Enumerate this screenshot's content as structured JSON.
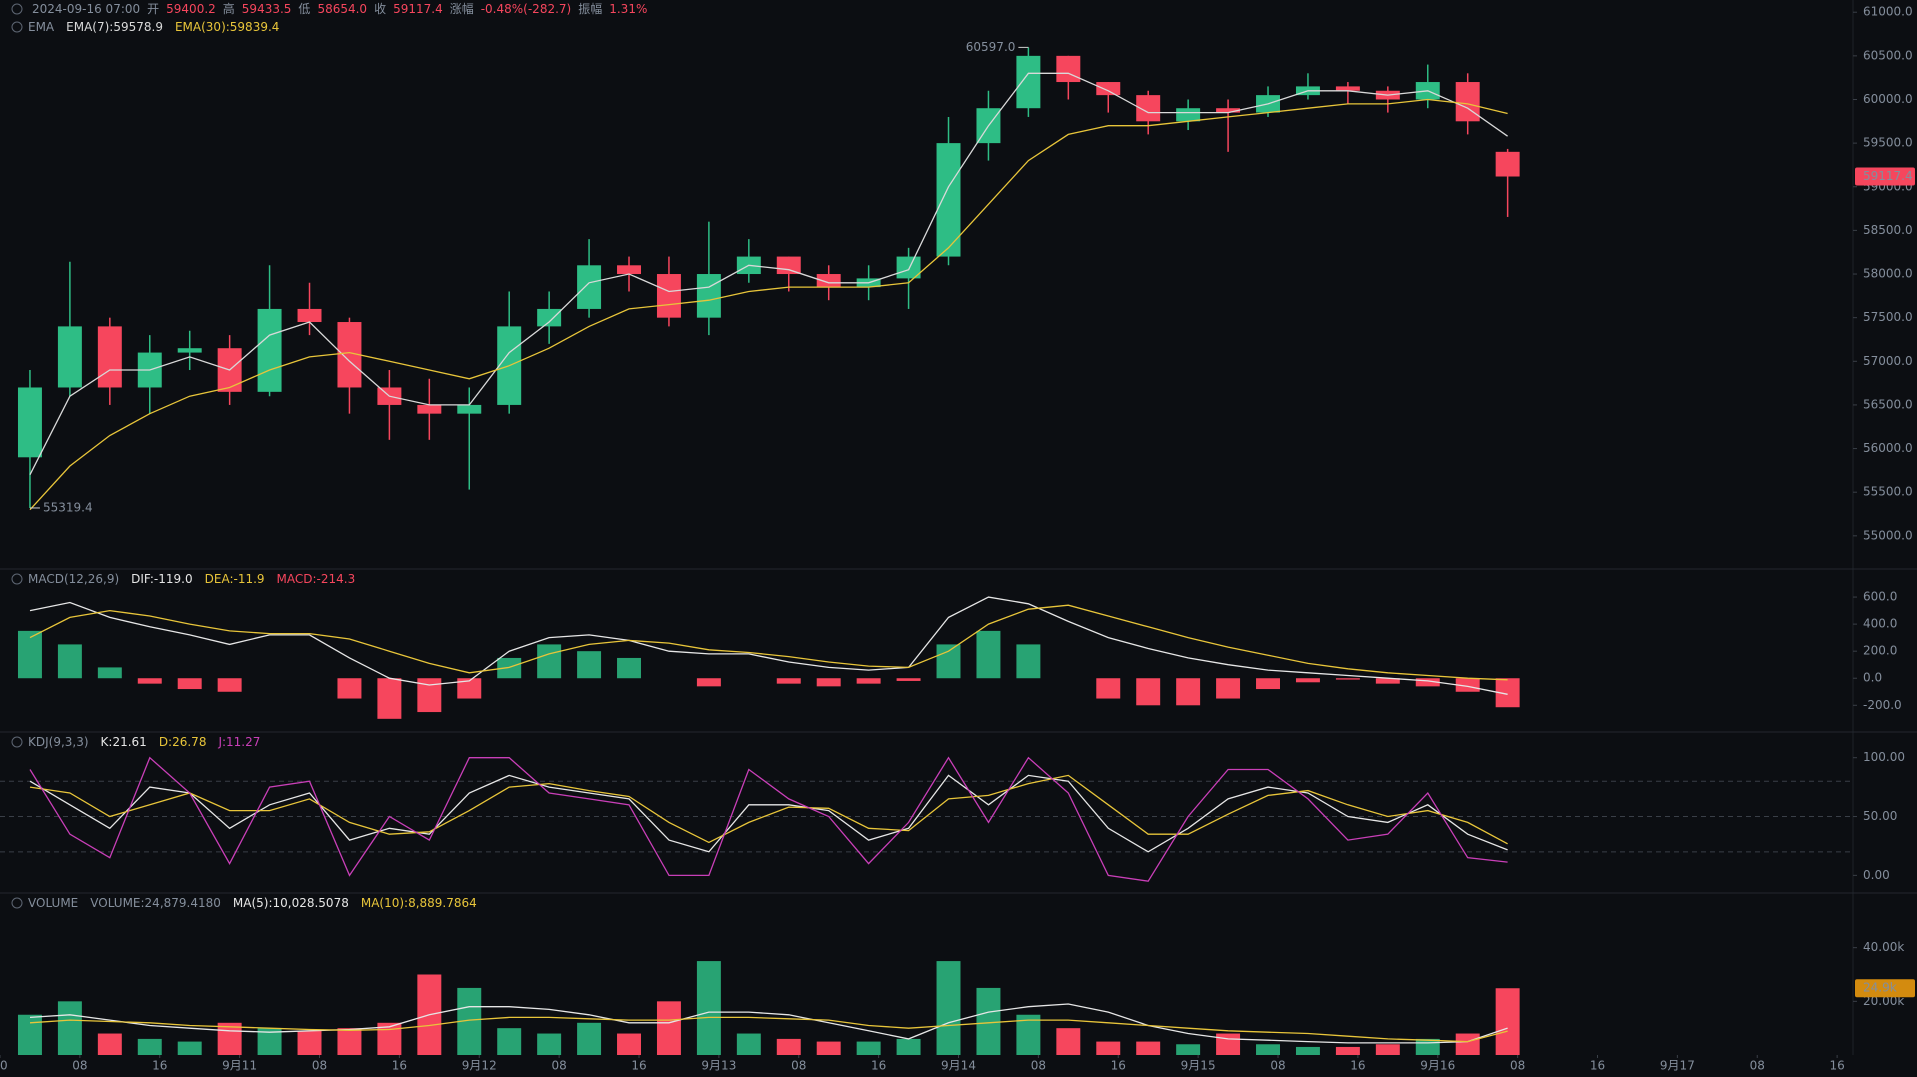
{
  "chart_data": [
    {
      "type": "candlestick",
      "indicator": "EMA",
      "header": [
        {
          "text": "2024-09-16 07:00",
          "color": "#848e9c"
        },
        {
          "text": "开",
          "color": "#848e9c"
        },
        {
          "text": "59400.2",
          "color": "#f6465d"
        },
        {
          "text": "高",
          "color": "#848e9c"
        },
        {
          "text": "59433.5",
          "color": "#f6465d"
        },
        {
          "text": "低",
          "color": "#848e9c"
        },
        {
          "text": "58654.0",
          "color": "#f6465d"
        },
        {
          "text": "收",
          "color": "#848e9c"
        },
        {
          "text": "59117.4",
          "color": "#f6465d"
        },
        {
          "text": "涨幅",
          "color": "#848e9c"
        },
        {
          "text": "-0.48%(-282.7)",
          "color": "#f6465d"
        },
        {
          "text": "振幅",
          "color": "#848e9c"
        },
        {
          "text": "1.31%",
          "color": "#f6465d"
        }
      ],
      "up_color": "#2ebd85",
      "down_color": "#f6465d",
      "xlim": [
        0,
        192
      ],
      "ylim": [
        54620,
        61140
      ],
      "yticks": [
        {
          "value": 55000,
          "label": "55000.0"
        },
        {
          "value": 55500,
          "label": "55500.0"
        },
        {
          "value": 56000,
          "label": "56000.0"
        },
        {
          "value": 56500,
          "label": "56500.0"
        },
        {
          "value": 57000,
          "label": "57000.0"
        },
        {
          "value": 57500,
          "label": "57500.0"
        },
        {
          "value": 58000,
          "label": "58000.0"
        },
        {
          "value": 58500,
          "label": "58500.0"
        },
        {
          "value": 59000,
          "label": "59000.0"
        },
        {
          "value": 59500,
          "label": "59500.0"
        },
        {
          "value": 60000,
          "label": "60000.0"
        },
        {
          "value": 60500,
          "label": "60500.0"
        },
        {
          "value": 61000,
          "label": "61000.0"
        }
      ],
      "x": [
        3,
        7,
        11,
        15,
        19,
        23,
        27,
        31,
        35,
        39,
        43,
        47,
        51,
        55,
        59,
        63,
        67,
        71,
        75,
        79,
        83,
        87,
        91,
        95,
        99,
        103,
        107,
        111,
        115,
        119,
        123,
        127,
        131,
        135,
        139,
        143,
        147,
        151
      ],
      "open": [
        55900,
        56700,
        57400,
        56700,
        57100,
        57150,
        56650,
        57600,
        57450,
        56700,
        56500,
        56400,
        56500,
        57400,
        57600,
        58100,
        58000,
        57500,
        58000,
        58200,
        58000,
        57850,
        57950,
        58200,
        59500,
        59900,
        60500,
        60200,
        60050,
        59750,
        59900,
        59850,
        60050,
        60150,
        60100,
        60000,
        60200,
        59400.2
      ],
      "high": [
        56900,
        58140,
        57500,
        57300,
        57350,
        57300,
        58100,
        57900,
        57500,
        56900,
        56800,
        56700,
        57800,
        57800,
        58400,
        58200,
        58200,
        58600,
        58400,
        58200,
        58100,
        58100,
        58300,
        59800,
        60100,
        60597,
        60500,
        60200,
        60100,
        60000,
        60000,
        60150,
        60300,
        60200,
        60150,
        60400,
        60300,
        59433.5
      ],
      "low": [
        55319.4,
        56600,
        56500,
        56400,
        56900,
        56500,
        56600,
        57300,
        56400,
        56100,
        56100,
        55530,
        56400,
        57200,
        57500,
        57800,
        57400,
        57300,
        57900,
        57800,
        57700,
        57700,
        57600,
        58100,
        59300,
        59800,
        60000,
        59850,
        59600,
        59650,
        59400,
        59800,
        60000,
        59950,
        59850,
        59900,
        59600,
        58654
      ],
      "close": [
        56700,
        57400,
        56700,
        57100,
        57150,
        56650,
        57600,
        57450,
        56700,
        56500,
        56400,
        56500,
        57400,
        57600,
        58100,
        58000,
        57500,
        58000,
        58200,
        58000,
        57850,
        57950,
        58200,
        59500,
        59900,
        60500,
        60200,
        60050,
        59750,
        59900,
        59850,
        60050,
        60150,
        60100,
        60000,
        60200,
        59750,
        59117.4
      ],
      "series": [
        {
          "name": "EMA(7):59578.9",
          "color": "#d9d9d9",
          "kind": "line",
          "values": [
            55700,
            56600,
            56900,
            56900,
            57050,
            56900,
            57300,
            57450,
            57000,
            56600,
            56500,
            56500,
            57100,
            57450,
            57900,
            58000,
            57800,
            57850,
            58100,
            58050,
            57900,
            57900,
            58050,
            59000,
            59700,
            60300,
            60300,
            60100,
            59850,
            59850,
            59850,
            59950,
            60100,
            60100,
            60050,
            60100,
            59900,
            59578.9
          ]
        },
        {
          "name": "EMA(30):59839.4",
          "color": "#e8c53a",
          "kind": "line",
          "values": [
            55300,
            55800,
            56150,
            56400,
            56600,
            56700,
            56900,
            57050,
            57100,
            57000,
            56900,
            56800,
            56950,
            57150,
            57400,
            57600,
            57650,
            57700,
            57800,
            57850,
            57850,
            57850,
            57900,
            58300,
            58800,
            59300,
            59600,
            59700,
            59700,
            59750,
            59800,
            59850,
            59900,
            59950,
            59950,
            60000,
            59950,
            59839.4
          ]
        }
      ],
      "annotations": [
        {
          "x": 103,
          "y": 60597,
          "label": "60597.0"
        },
        {
          "x": 3,
          "y": 55319.4,
          "label": "55319.4"
        }
      ],
      "tag": {
        "value": 59117.4,
        "label": "59117.4",
        "color": "#f6465d"
      }
    },
    {
      "type": "combo",
      "indicator": "MACD(12,26,9)",
      "xlim": [
        0,
        192
      ],
      "ylim": [
        -390,
        800
      ],
      "yticks": [
        {
          "value": 600,
          "label": "600.0"
        },
        {
          "value": 400,
          "label": "400.0"
        },
        {
          "value": 200,
          "label": "200.0"
        },
        {
          "value": 0,
          "label": "0.0"
        },
        {
          "value": -200,
          "label": "-200.0"
        }
      ],
      "x": [
        3,
        7,
        11,
        15,
        19,
        23,
        27,
        31,
        35,
        39,
        43,
        47,
        51,
        55,
        59,
        63,
        67,
        71,
        75,
        79,
        83,
        87,
        91,
        95,
        99,
        103,
        107,
        111,
        115,
        119,
        123,
        127,
        131,
        135,
        139,
        143,
        147,
        151
      ],
      "series": [
        {
          "name": "DIF:-119.0",
          "color": "#e6e6e6",
          "kind": "line",
          "values": [
            500,
            560,
            450,
            380,
            320,
            250,
            320,
            320,
            150,
            0,
            -50,
            -20,
            200,
            300,
            320,
            280,
            200,
            180,
            180,
            120,
            80,
            60,
            80,
            450,
            600,
            550,
            420,
            300,
            220,
            150,
            100,
            60,
            40,
            20,
            0,
            -20,
            -60,
            -119.0
          ]
        },
        {
          "name": "DEA:-11.9",
          "color": "#e8c53a",
          "kind": "line",
          "values": [
            300,
            450,
            500,
            460,
            400,
            350,
            330,
            330,
            290,
            200,
            110,
            40,
            80,
            180,
            250,
            280,
            260,
            210,
            190,
            160,
            120,
            90,
            80,
            200,
            400,
            510,
            540,
            460,
            380,
            300,
            230,
            170,
            110,
            70,
            40,
            20,
            0,
            -11.9
          ]
        },
        {
          "name": "MACD:-214.3",
          "color": "#f6465d",
          "kind": "bar",
          "color_rule": "sign",
          "up_color": "#2ebd85",
          "down_color": "#f6465d",
          "values": [
            350,
            250,
            80,
            -40,
            -80,
            -100,
            0,
            0,
            -150,
            -300,
            -250,
            -150,
            150,
            250,
            200,
            150,
            0,
            -60,
            0,
            -40,
            -60,
            -40,
            -20,
            250,
            350,
            250,
            0,
            -150,
            -200,
            -200,
            -150,
            -80,
            -30,
            -10,
            -40,
            -60,
            -100,
            -214.3
          ]
        }
      ]
    },
    {
      "type": "combo",
      "indicator": "KDJ(9,3,3)",
      "xlim": [
        0,
        192
      ],
      "ylim": [
        -15,
        121
      ],
      "levels": [
        20,
        50,
        80
      ],
      "yticks": [
        {
          "value": 100,
          "label": "100.00"
        },
        {
          "value": 50,
          "label": "50.00"
        },
        {
          "value": 0,
          "label": "0.00"
        }
      ],
      "x": [
        3,
        7,
        11,
        15,
        19,
        23,
        27,
        31,
        35,
        39,
        43,
        47,
        51,
        55,
        59,
        63,
        67,
        71,
        75,
        79,
        83,
        87,
        91,
        95,
        99,
        103,
        107,
        111,
        115,
        119,
        123,
        127,
        131,
        135,
        139,
        143,
        147,
        151
      ],
      "series": [
        {
          "name": "K:21.61",
          "color": "#e6e6e6",
          "kind": "line",
          "values": [
            80,
            60,
            40,
            75,
            70,
            40,
            60,
            70,
            30,
            40,
            35,
            70,
            85,
            75,
            70,
            65,
            30,
            20,
            60,
            60,
            55,
            30,
            40,
            85,
            60,
            85,
            80,
            40,
            20,
            40,
            65,
            75,
            70,
            50,
            45,
            60,
            35,
            21.61
          ]
        },
        {
          "name": "D:26.78",
          "color": "#e8c53a",
          "kind": "line",
          "values": [
            75,
            70,
            50,
            60,
            70,
            55,
            55,
            65,
            45,
            35,
            37,
            55,
            75,
            78,
            72,
            67,
            45,
            28,
            45,
            58,
            57,
            40,
            38,
            65,
            68,
            78,
            85,
            60,
            35,
            35,
            52,
            68,
            72,
            60,
            50,
            55,
            45,
            26.78
          ]
        },
        {
          "name": "J:11.27",
          "color": "#c93fb8",
          "kind": "line",
          "values": [
            90,
            35,
            15,
            100,
            70,
            10,
            75,
            80,
            0,
            50,
            30,
            100,
            100,
            70,
            65,
            60,
            0,
            0,
            90,
            65,
            50,
            10,
            45,
            100,
            45,
            100,
            70,
            0,
            -5,
            50,
            90,
            90,
            65,
            30,
            35,
            70,
            15,
            11.27
          ]
        }
      ]
    },
    {
      "type": "combo",
      "indicator": "VOLUME",
      "xlim": [
        0,
        192
      ],
      "ylim": [
        0,
        60000
      ],
      "yticks": [
        {
          "value": 40000,
          "label": "40.00k"
        },
        {
          "value": 20000,
          "label": "20.00k"
        }
      ],
      "xticks": [
        0,
        {
          "value": 8,
          "label": "08"
        },
        16,
        {
          "value": 24,
          "label": "9月11"
        },
        {
          "value": 32,
          "label": "08"
        },
        {
          "value": 40,
          "label": "16"
        },
        {
          "value": 48,
          "label": "9月12"
        },
        {
          "value": 56,
          "label": "08"
        },
        {
          "value": 64,
          "label": "16"
        },
        {
          "value": 72,
          "label": "9月13"
        },
        {
          "value": 80,
          "label": "08"
        },
        {
          "value": 88,
          "label": "16"
        },
        {
          "value": 96,
          "label": "9月14"
        },
        {
          "value": 104,
          "label": "08"
        },
        {
          "value": 112,
          "label": "16"
        },
        {
          "value": 120,
          "label": "9月15"
        },
        {
          "value": 128,
          "label": "08"
        },
        {
          "value": 136,
          "label": "16"
        },
        {
          "value": 144,
          "label": "9月16"
        },
        {
          "value": 152,
          "label": "08"
        },
        {
          "value": 160,
          "label": "16"
        },
        {
          "value": 168,
          "label": "9月17"
        },
        {
          "value": 176,
          "label": "08"
        },
        {
          "value": 184,
          "label": "16"
        }
      ],
      "x": [
        3,
        7,
        11,
        15,
        19,
        23,
        27,
        31,
        35,
        39,
        43,
        47,
        51,
        55,
        59,
        63,
        67,
        71,
        75,
        79,
        83,
        87,
        91,
        95,
        99,
        103,
        107,
        111,
        115,
        119,
        123,
        127,
        131,
        135,
        139,
        143,
        147,
        151
      ],
      "series": [
        {
          "name": "VOLUME:24,879.4180",
          "color": "#848e9c",
          "kind": "bar",
          "color_rule": "candle",
          "up_color": "#2ebd85",
          "down_color": "#f6465d",
          "values": [
            15000,
            20000,
            8000,
            6000,
            5000,
            12000,
            10000,
            9000,
            10000,
            12000,
            30000,
            25000,
            10000,
            8000,
            12000,
            8000,
            20000,
            35000,
            8000,
            6000,
            5000,
            5000,
            6000,
            35000,
            25000,
            15000,
            10000,
            5000,
            5000,
            4000,
            8000,
            4000,
            3000,
            3000,
            4000,
            6000,
            8000,
            24879.418
          ]
        },
        {
          "name": "MA(5):10,028.5078",
          "color": "#e6e6e6",
          "kind": "line",
          "values": [
            14000,
            15000,
            13000,
            11000,
            10000,
            9000,
            8500,
            9000,
            9500,
            10500,
            15000,
            18000,
            18000,
            17000,
            15000,
            12000,
            12000,
            16000,
            16000,
            15000,
            12000,
            9000,
            6000,
            12000,
            16000,
            18000,
            19000,
            16000,
            11000,
            8000,
            6000,
            5500,
            5000,
            4500,
            4500,
            4500,
            5000,
            10028.5078
          ]
        },
        {
          "name": "MA(10):8,889.7864",
          "color": "#e8c53a",
          "kind": "line",
          "values": [
            12000,
            13000,
            12500,
            12000,
            11000,
            10500,
            10000,
            9500,
            9200,
            9500,
            11000,
            13000,
            14000,
            14000,
            13500,
            13000,
            13000,
            14000,
            14000,
            13500,
            13000,
            11000,
            10000,
            11000,
            12000,
            13000,
            13000,
            12000,
            11000,
            10000,
            9000,
            8500,
            8000,
            7000,
            6000,
            5500,
            5000,
            8889.7864
          ]
        }
      ],
      "tag": {
        "value": 24879.418,
        "label": "24.9k",
        "color": "#d38b0f"
      }
    }
  ]
}
